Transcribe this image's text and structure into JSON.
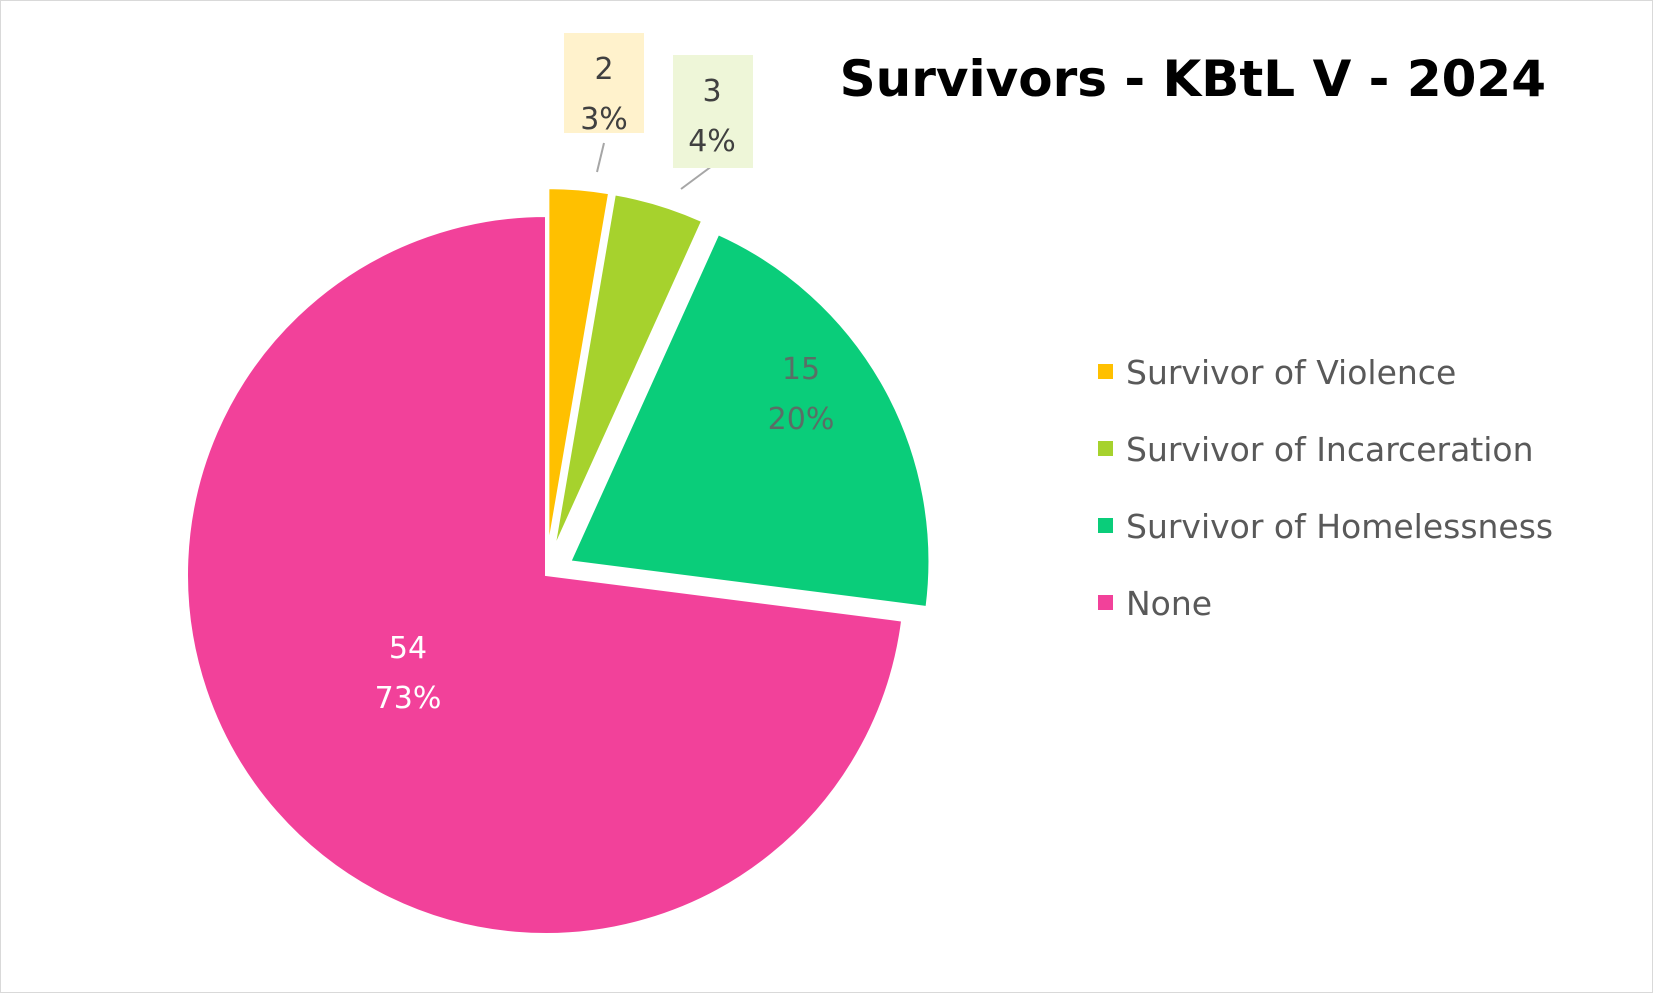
{
  "chart_data": {
    "type": "pie",
    "title": "Survivors - KBtL V - 2024",
    "legend_position": "right",
    "slices": [
      {
        "name": "Survivor of Violence",
        "value": 2,
        "percent_label": "3%",
        "color": "#FFC000",
        "label_box": "#FFF2CC",
        "label_color": "#404040",
        "exploded": true
      },
      {
        "name": "Survivor of Incarceration",
        "value": 3,
        "percent_label": "4%",
        "color": "#A6D22D",
        "label_box": "#EEF6D8",
        "label_color": "#404040",
        "exploded": true
      },
      {
        "name": "Survivor of Homelessness",
        "value": 15,
        "percent_label": "20%",
        "color": "#0ACD7A",
        "label_box": null,
        "label_color": "#5A6E66",
        "exploded": true
      },
      {
        "name": "None",
        "value": 54,
        "percent_label": "73%",
        "color": "#F2419A",
        "label_box": null,
        "label_color": "#FFFFFF",
        "exploded": false
      }
    ]
  }
}
